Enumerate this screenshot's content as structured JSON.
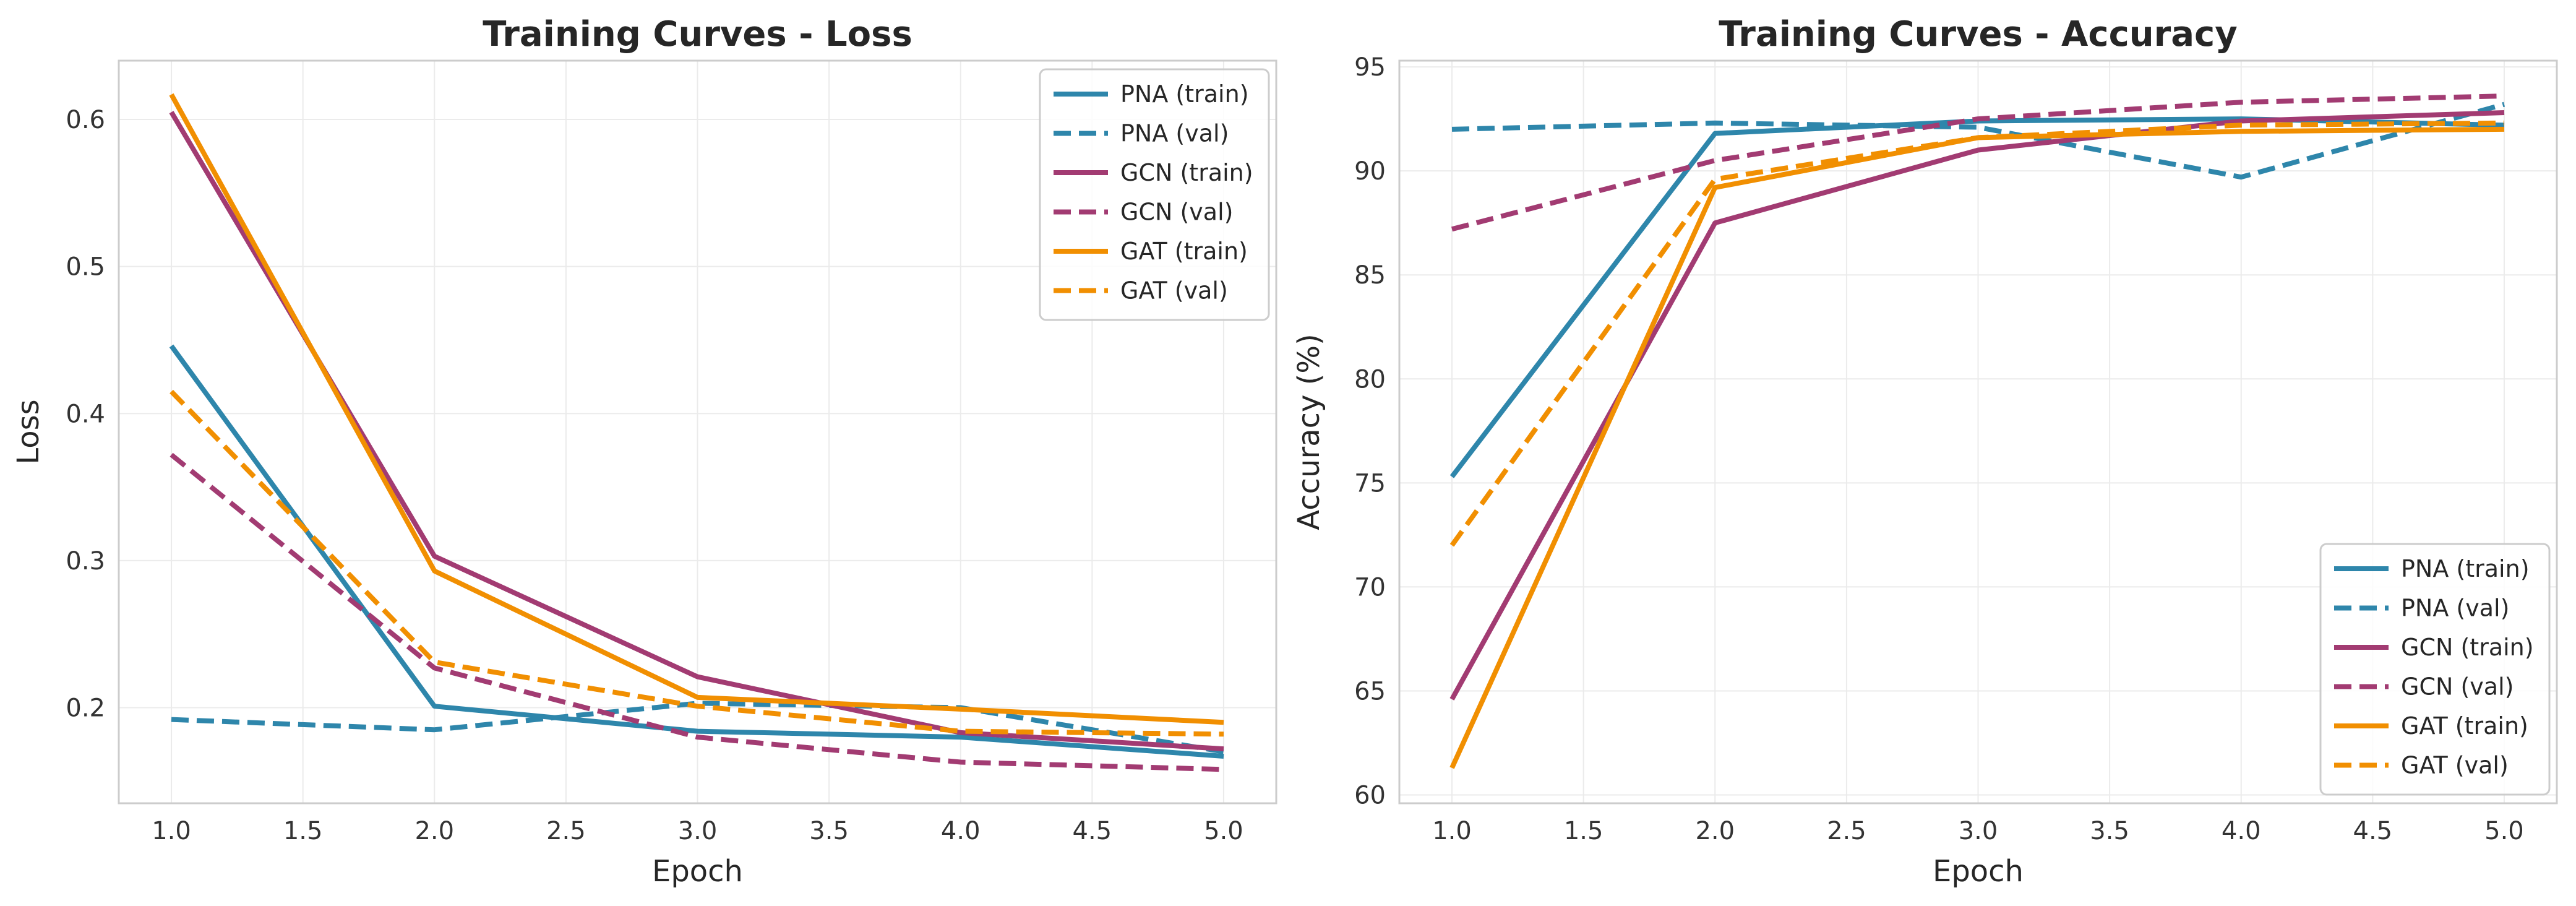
{
  "colors": {
    "PNA": "#2e86ab",
    "GCN": "#a23b72",
    "GAT": "#f18f01"
  },
  "chart_data": [
    {
      "type": "line",
      "title": "Training Curves - Loss",
      "xlabel": "Epoch",
      "ylabel": "Loss",
      "xlim": [
        0.8,
        5.2
      ],
      "ylim": [
        0.135,
        0.64
      ],
      "xticks": [
        1.0,
        1.5,
        2.0,
        2.5,
        3.0,
        3.5,
        4.0,
        4.5,
        5.0
      ],
      "xtick_labels": [
        "1.0",
        "1.5",
        "2.0",
        "2.5",
        "3.0",
        "3.5",
        "4.0",
        "4.5",
        "5.0"
      ],
      "yticks": [
        0.2,
        0.3,
        0.4,
        0.5,
        0.6
      ],
      "ytick_labels": [
        "0.2",
        "0.3",
        "0.4",
        "0.5",
        "0.6"
      ],
      "grid": true,
      "legend_position": "upper right",
      "x": [
        1,
        2,
        3,
        4,
        5
      ],
      "series": [
        {
          "name": "PNA (train)",
          "model": "PNA",
          "style": "solid",
          "values": [
            0.446,
            0.201,
            0.184,
            0.18,
            0.167
          ]
        },
        {
          "name": "PNA (val)",
          "model": "PNA",
          "style": "dashed",
          "values": [
            0.192,
            0.185,
            0.203,
            0.2,
            0.17
          ]
        },
        {
          "name": "GCN (train)",
          "model": "GCN",
          "style": "solid",
          "values": [
            0.605,
            0.303,
            0.221,
            0.183,
            0.172
          ]
        },
        {
          "name": "GCN (val)",
          "model": "GCN",
          "style": "dashed",
          "values": [
            0.372,
            0.227,
            0.18,
            0.163,
            0.158
          ]
        },
        {
          "name": "GAT (train)",
          "model": "GAT",
          "style": "solid",
          "values": [
            0.617,
            0.293,
            0.207,
            0.199,
            0.19
          ]
        },
        {
          "name": "GAT (val)",
          "model": "GAT",
          "style": "dashed",
          "values": [
            0.415,
            0.231,
            0.201,
            0.184,
            0.182
          ]
        }
      ]
    },
    {
      "type": "line",
      "title": "Training Curves - Accuracy",
      "xlabel": "Epoch",
      "ylabel": "Accuracy (%)",
      "xlim": [
        0.8,
        5.2
      ],
      "ylim": [
        59.6,
        95.3
      ],
      "xticks": [
        1.0,
        1.5,
        2.0,
        2.5,
        3.0,
        3.5,
        4.0,
        4.5,
        5.0
      ],
      "xtick_labels": [
        "1.0",
        "1.5",
        "2.0",
        "2.5",
        "3.0",
        "3.5",
        "4.0",
        "4.5",
        "5.0"
      ],
      "yticks": [
        60,
        65,
        70,
        75,
        80,
        85,
        90,
        95
      ],
      "ytick_labels": [
        "60",
        "65",
        "70",
        "75",
        "80",
        "85",
        "90",
        "95"
      ],
      "grid": true,
      "legend_position": "lower right",
      "x": [
        1,
        2,
        3,
        4,
        5
      ],
      "series": [
        {
          "name": "PNA (train)",
          "model": "PNA",
          "style": "solid",
          "values": [
            75.3,
            91.8,
            92.4,
            92.5,
            92.2
          ]
        },
        {
          "name": "PNA (val)",
          "model": "PNA",
          "style": "dashed",
          "values": [
            92.0,
            92.3,
            92.1,
            89.7,
            93.2
          ]
        },
        {
          "name": "GCN (train)",
          "model": "GCN",
          "style": "solid",
          "values": [
            64.6,
            87.5,
            91.0,
            92.4,
            92.8
          ]
        },
        {
          "name": "GCN (val)",
          "model": "GCN",
          "style": "dashed",
          "values": [
            87.2,
            90.5,
            92.5,
            93.3,
            93.6
          ]
        },
        {
          "name": "GAT (train)",
          "model": "GAT",
          "style": "solid",
          "values": [
            61.3,
            89.2,
            91.6,
            91.9,
            92.0
          ]
        },
        {
          "name": "GAT (val)",
          "model": "GAT",
          "style": "dashed",
          "values": [
            72.0,
            89.6,
            91.6,
            92.2,
            92.3
          ]
        }
      ]
    }
  ]
}
